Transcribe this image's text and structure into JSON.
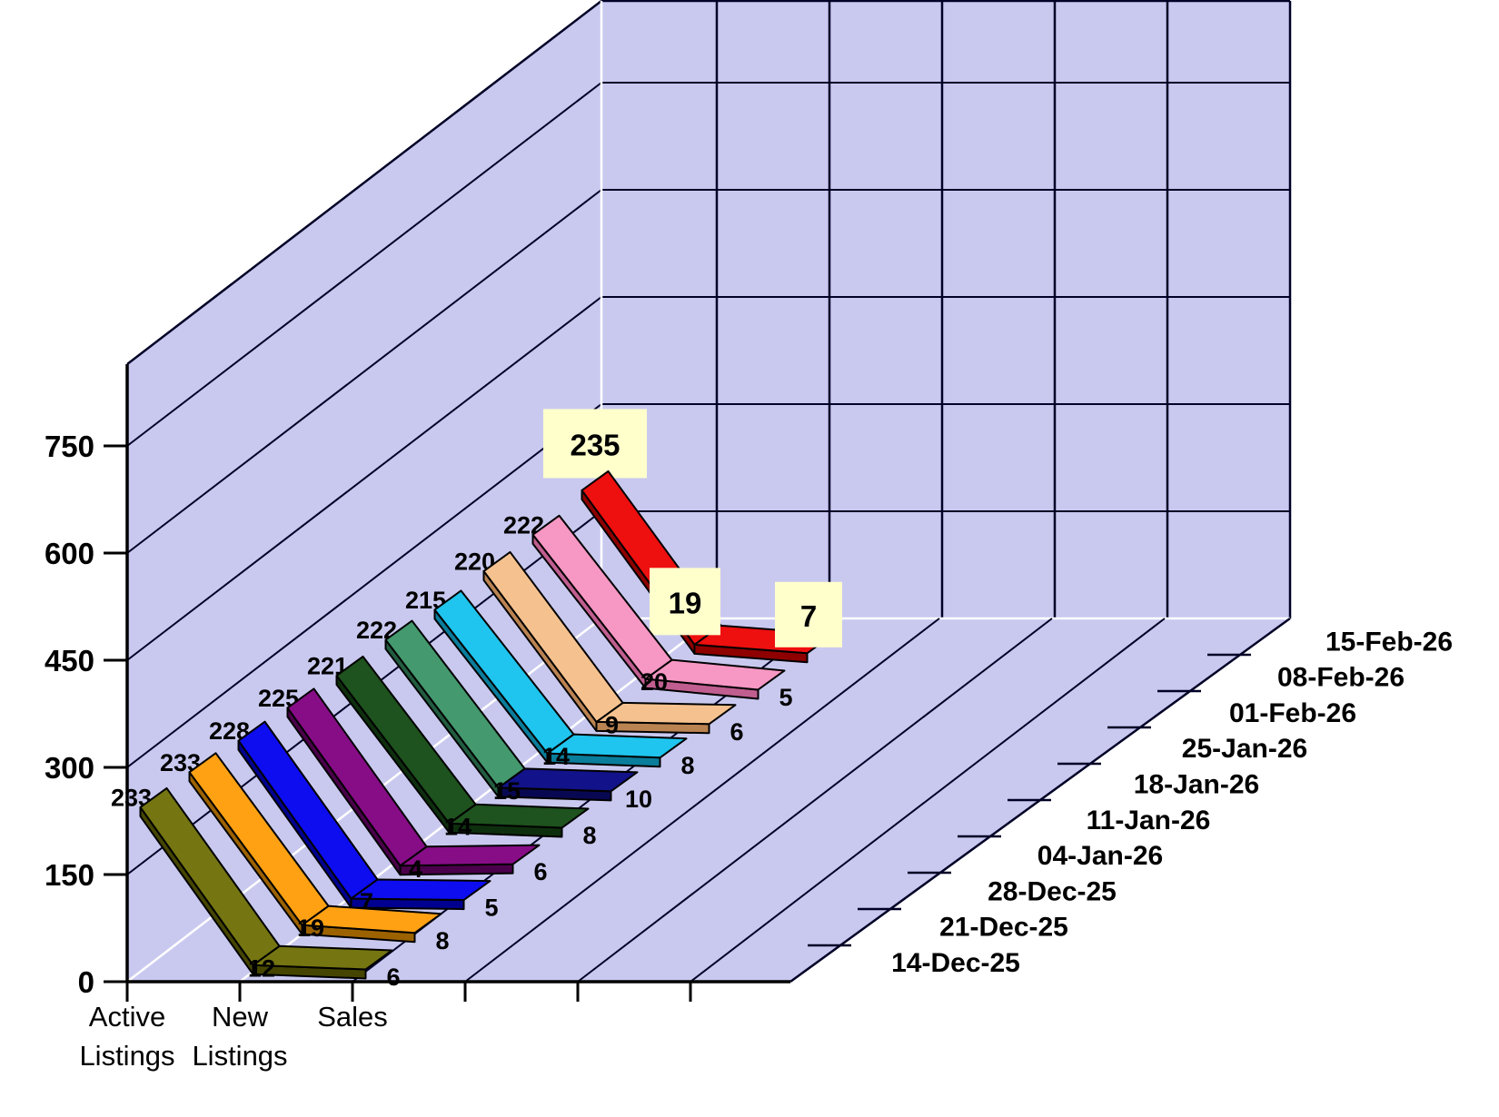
{
  "chart_data": {
    "type": "line",
    "projection": "3d-ribbon",
    "title": "",
    "legend_position": "none",
    "grid": true,
    "categories": [
      "Active Listings",
      "New Listings",
      "Sales"
    ],
    "category_label_lines": [
      [
        "Active",
        "Listings"
      ],
      [
        "New",
        "Listings"
      ],
      [
        "Sales"
      ]
    ],
    "value_axis": {
      "min": 0,
      "max": 860,
      "tick_interval": 150,
      "ticks": [
        "0",
        "150",
        "300",
        "450",
        "600",
        "750"
      ]
    },
    "series_axis_dates": [
      "14-Dec-25",
      "21-Dec-25",
      "28-Dec-25",
      "04-Jan-26",
      "11-Jan-26",
      "18-Jan-26",
      "25-Jan-26",
      "01-Feb-26",
      "08-Feb-26",
      "15-Feb-26"
    ],
    "series": [
      {
        "date": "14-Dec-25",
        "active_listings": 233,
        "new_listings": 12,
        "sales": 6,
        "color": "#757512",
        "side_color": "#454500",
        "highlighted": false
      },
      {
        "date": "21-Dec-25",
        "active_listings": 233,
        "new_listings": 19,
        "sales": 8,
        "color": "#FFA113",
        "side_color": "#9C6200",
        "highlighted": false
      },
      {
        "date": "28-Dec-25",
        "active_listings": 228,
        "new_listings": 7,
        "sales": 5,
        "color": "#0D0DF0",
        "side_color": "#000090",
        "highlighted": false
      },
      {
        "date": "04-Jan-26",
        "active_listings": 225,
        "new_listings": 4,
        "sales": 6,
        "color": "#870D87",
        "side_color": "#4B004B",
        "highlighted": false
      },
      {
        "date": "11-Jan-26",
        "active_listings": 221,
        "new_listings": 14,
        "sales": 8,
        "color": "#1E521E",
        "side_color": "#0E2F0E",
        "highlighted": false
      },
      {
        "date": "18-Jan-26",
        "active_listings": 222,
        "new_listings": 15,
        "sales": 10,
        "color": "#44996E",
        "side_color": "#225C40",
        "sales_segment_color": "#12128A",
        "sales_segment_side_color": "#080852",
        "highlighted": false
      },
      {
        "date": "25-Jan-26",
        "active_listings": 215,
        "new_listings": 14,
        "sales": 8,
        "color": "#1FC5EE",
        "side_color": "#0A7D9B",
        "highlighted": false
      },
      {
        "date": "01-Feb-26",
        "active_listings": 220,
        "new_listings": 9,
        "sales": 6,
        "color": "#F5C28F",
        "side_color": "#BA8352",
        "highlighted": false
      },
      {
        "date": "08-Feb-26",
        "active_listings": 222,
        "new_listings": 20,
        "sales": 5,
        "color": "#F797C4",
        "side_color": "#C05E90",
        "highlighted": false
      },
      {
        "date": "15-Feb-26",
        "active_listings": 235,
        "new_listings": 19,
        "sales": 7,
        "color": "#EE0F0F",
        "side_color": "#8F0000",
        "highlighted": true
      }
    ],
    "colors": {
      "background": "#FFFFFF",
      "wall": "#C9C9F0",
      "grid_dark": "#000026",
      "grid_white": "#FFFFFF",
      "axis": "#000000",
      "highlight_label_bg": "#FFFFCC",
      "label_text": "#000000"
    }
  }
}
